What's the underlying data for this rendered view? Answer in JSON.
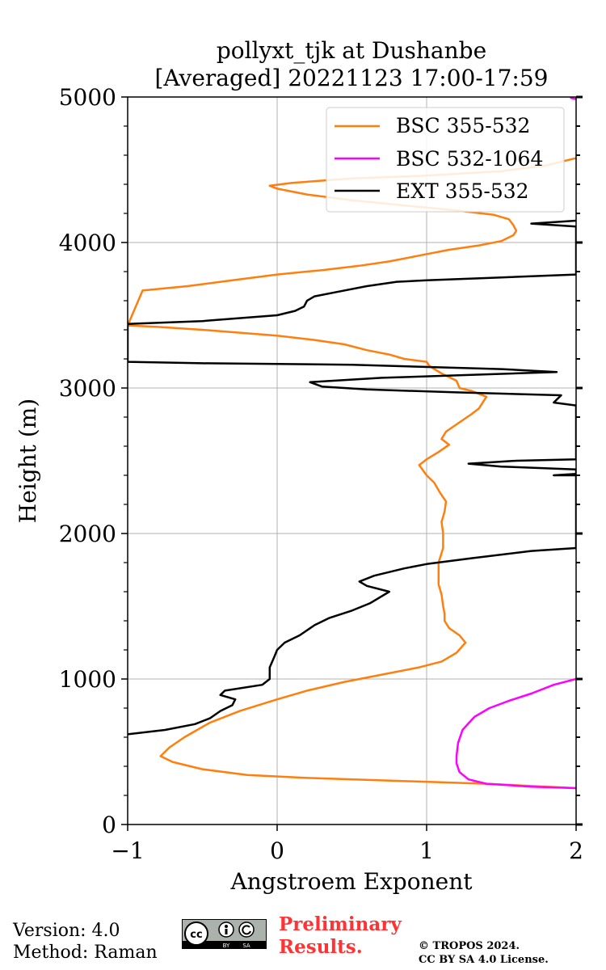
{
  "chart_data": {
    "type": "line",
    "title_line1": "pollyxt_tjk at Dushanbe",
    "title_line2": "[Averaged] 20221123 17:00-17:59",
    "xlabel": "Angstroem Exponent",
    "ylabel": "Height (m)",
    "xlim": [
      -1,
      2
    ],
    "ylim": [
      0,
      5000
    ],
    "xticks": [
      -1,
      0,
      1,
      2
    ],
    "xtick_labels": [
      "−1",
      "0",
      "1",
      "2"
    ],
    "yticks": [
      0,
      1000,
      2000,
      3000,
      4000,
      5000
    ],
    "ytick_labels": [
      "0",
      "1000",
      "2000",
      "3000",
      "4000",
      "5000"
    ],
    "grid": true,
    "legend_position": "top-right",
    "series": [
      {
        "name": "BSC 355-532",
        "color": "#ff7f0e",
        "points": [
          [
            2.0,
            250
          ],
          [
            1.4,
            280
          ],
          [
            0.8,
            300
          ],
          [
            0.2,
            320
          ],
          [
            -0.2,
            340
          ],
          [
            -0.5,
            380
          ],
          [
            -0.7,
            430
          ],
          [
            -0.78,
            470
          ],
          [
            -0.72,
            530
          ],
          [
            -0.62,
            600
          ],
          [
            -0.45,
            700
          ],
          [
            -0.25,
            780
          ],
          [
            0.0,
            860
          ],
          [
            0.2,
            920
          ],
          [
            0.45,
            980
          ],
          [
            0.7,
            1030
          ],
          [
            0.95,
            1080
          ],
          [
            1.1,
            1120
          ],
          [
            1.2,
            1180
          ],
          [
            1.26,
            1250
          ],
          [
            1.22,
            1300
          ],
          [
            1.15,
            1350
          ],
          [
            1.12,
            1400
          ],
          [
            1.12,
            1450
          ],
          [
            1.11,
            1500
          ],
          [
            1.1,
            1580
          ],
          [
            1.08,
            1650
          ],
          [
            1.08,
            1800
          ],
          [
            1.11,
            1900
          ],
          [
            1.11,
            2000
          ],
          [
            1.1,
            2080
          ],
          [
            1.12,
            2150
          ],
          [
            1.13,
            2220
          ],
          [
            1.09,
            2280
          ],
          [
            1.05,
            2350
          ],
          [
            1.0,
            2400
          ],
          [
            0.95,
            2470
          ],
          [
            1.0,
            2510
          ],
          [
            1.08,
            2560
          ],
          [
            1.15,
            2610
          ],
          [
            1.1,
            2650
          ],
          [
            1.13,
            2700
          ],
          [
            1.2,
            2750
          ],
          [
            1.3,
            2820
          ],
          [
            1.35,
            2860
          ],
          [
            1.4,
            2940
          ],
          [
            1.3,
            2980
          ],
          [
            1.22,
            3000
          ],
          [
            1.2,
            3050
          ],
          [
            1.1,
            3100
          ],
          [
            1.02,
            3150
          ],
          [
            1.0,
            3180
          ],
          [
            0.85,
            3200
          ],
          [
            0.75,
            3230
          ],
          [
            0.6,
            3260
          ],
          [
            0.45,
            3300
          ],
          [
            0.25,
            3330
          ],
          [
            0.0,
            3360
          ],
          [
            -0.5,
            3400
          ],
          [
            -0.8,
            3420
          ],
          [
            -1.0,
            3430
          ],
          [
            -0.9,
            3670
          ],
          [
            -0.6,
            3700
          ],
          [
            -0.3,
            3740
          ],
          [
            0.0,
            3780
          ],
          [
            0.3,
            3810
          ],
          [
            0.55,
            3840
          ],
          [
            0.75,
            3870
          ],
          [
            0.95,
            3910
          ],
          [
            1.15,
            3950
          ],
          [
            1.35,
            3980
          ],
          [
            1.5,
            4010
          ],
          [
            1.58,
            4050
          ],
          [
            1.6,
            4080
          ],
          [
            1.58,
            4120
          ],
          [
            1.55,
            4160
          ],
          [
            1.45,
            4190
          ],
          [
            1.2,
            4220
          ],
          [
            0.9,
            4250
          ],
          [
            0.5,
            4290
          ],
          [
            0.2,
            4330
          ],
          [
            0.0,
            4370
          ],
          [
            -0.05,
            4390
          ],
          [
            0.1,
            4410
          ],
          [
            0.5,
            4440
          ],
          [
            1.0,
            4460
          ],
          [
            1.5,
            4490
          ],
          [
            1.8,
            4530
          ],
          [
            2.0,
            4580
          ]
        ]
      },
      {
        "name": "BSC 532-1064",
        "color": "#ff00ff",
        "points": [
          [
            2.0,
            250
          ],
          [
            1.7,
            260
          ],
          [
            1.4,
            280
          ],
          [
            1.28,
            310
          ],
          [
            1.22,
            360
          ],
          [
            1.2,
            420
          ],
          [
            1.2,
            470
          ],
          [
            1.21,
            560
          ],
          [
            1.24,
            650
          ],
          [
            1.32,
            740
          ],
          [
            1.42,
            800
          ],
          [
            1.55,
            850
          ],
          [
            1.7,
            900
          ],
          [
            1.85,
            960
          ],
          [
            2.0,
            1000
          ]
        ],
        "points_upper": [
          [
            1.96,
            4995
          ],
          [
            2.0,
            4985
          ]
        ]
      },
      {
        "name": "EXT 355-532",
        "color": "#000000",
        "points": [
          [
            -1.0,
            620
          ],
          [
            -0.75,
            650
          ],
          [
            -0.55,
            690
          ],
          [
            -0.45,
            730
          ],
          [
            -0.38,
            780
          ],
          [
            -0.3,
            820
          ],
          [
            -0.28,
            860
          ],
          [
            -0.38,
            890
          ],
          [
            -0.35,
            920
          ],
          [
            -0.1,
            960
          ],
          [
            -0.05,
            1000
          ],
          [
            -0.05,
            1080
          ],
          [
            -0.02,
            1150
          ],
          [
            0.0,
            1200
          ],
          [
            0.05,
            1250
          ],
          [
            0.15,
            1300
          ],
          [
            0.25,
            1370
          ],
          [
            0.35,
            1420
          ],
          [
            0.5,
            1470
          ],
          [
            0.62,
            1520
          ],
          [
            0.75,
            1600
          ],
          [
            0.6,
            1640
          ],
          [
            0.55,
            1670
          ],
          [
            0.65,
            1710
          ],
          [
            0.85,
            1760
          ],
          [
            1.0,
            1790
          ],
          [
            1.3,
            1830
          ],
          [
            1.7,
            1880
          ],
          [
            2.0,
            1900
          ],
          [
            2.0,
            2400
          ],
          [
            1.85,
            2400
          ],
          [
            2.0,
            2410
          ],
          [
            2.0,
            2440
          ],
          [
            1.5,
            2460
          ],
          [
            1.28,
            2480
          ],
          [
            1.6,
            2500
          ],
          [
            2.0,
            2510
          ],
          [
            2.0,
            2880
          ],
          [
            1.85,
            2900
          ],
          [
            1.9,
            2950
          ],
          [
            1.2,
            2970
          ],
          [
            0.6,
            2990
          ],
          [
            0.3,
            3010
          ],
          [
            0.22,
            3040
          ],
          [
            0.7,
            3070
          ],
          [
            1.3,
            3090
          ],
          [
            1.87,
            3110
          ],
          [
            1.5,
            3130
          ],
          [
            0.5,
            3160
          ],
          [
            -0.5,
            3170
          ],
          [
            -1.0,
            3180
          ],
          [
            -1.0,
            3440
          ],
          [
            -0.5,
            3460
          ],
          [
            0.0,
            3500
          ],
          [
            0.12,
            3530
          ],
          [
            0.18,
            3560
          ],
          [
            0.2,
            3600
          ],
          [
            0.25,
            3630
          ],
          [
            0.4,
            3660
          ],
          [
            0.6,
            3700
          ],
          [
            0.8,
            3730
          ],
          [
            1.0,
            3740
          ],
          [
            1.5,
            3760
          ],
          [
            2.0,
            3780
          ],
          [
            2.0,
            4110
          ],
          [
            1.7,
            4130
          ],
          [
            2.0,
            4150
          ]
        ]
      }
    ]
  },
  "footer": {
    "version": "Version: 4.0",
    "method": "Method: Raman",
    "preliminary_line1": "Preliminary",
    "preliminary_line2": "Results.",
    "copyright_line1": "© TROPOS 2024.",
    "copyright_line2": "CC BY SA 4.0 License."
  }
}
